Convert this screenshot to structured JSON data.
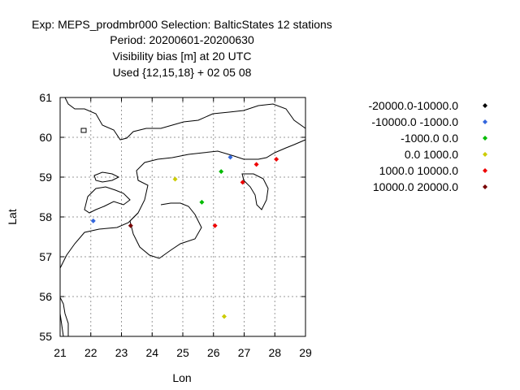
{
  "chart_data": {
    "type": "scatter",
    "title_lines": [
      "Exp: MEPS_prodmbr000   Selection: BalticStates     12 stations",
      "Period: 20200601-20200630",
      "Visibility bias [m] at  20 UTC",
      "Used {12,15,18} + 02 05 08"
    ],
    "xlabel": "Lon",
    "ylabel": "Lat",
    "xlim": [
      21,
      29
    ],
    "ylim": [
      55,
      61
    ],
    "xticks": [
      "21",
      "22",
      "23",
      "24",
      "25",
      "26",
      "27",
      "28",
      "29"
    ],
    "yticks": [
      "55",
      "56",
      "57",
      "58",
      "59",
      "60",
      "61"
    ],
    "grid": true,
    "legend_position": "right",
    "series": [
      {
        "name": "-20000.0-10000.0",
        "color": "#000000",
        "points": []
      },
      {
        "name": "-10000.0 -1000.0",
        "color": "#3366dd",
        "points": [
          [
            22.08,
            57.9
          ],
          [
            26.55,
            59.5
          ]
        ]
      },
      {
        "name": "-1000.0 0.0",
        "color": "#00bb00",
        "points": [
          [
            25.62,
            58.37
          ],
          [
            26.25,
            59.14
          ]
        ]
      },
      {
        "name": "0.0 1000.0",
        "color": "#cccc00",
        "points": [
          [
            24.75,
            58.95
          ],
          [
            26.35,
            55.5
          ]
        ]
      },
      {
        "name": "1000.0 10000.0",
        "color": "#ee0000",
        "points": [
          [
            26.05,
            57.78
          ],
          [
            26.95,
            58.87
          ],
          [
            27.4,
            59.32
          ],
          [
            28.05,
            59.45
          ]
        ]
      },
      {
        "name": "10000.0 20000.0",
        "color": "#770000",
        "points": [
          [
            23.3,
            57.78
          ]
        ]
      }
    ]
  }
}
